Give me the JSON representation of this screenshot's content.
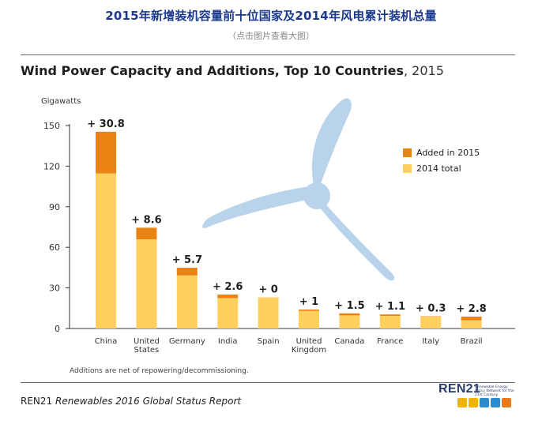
{
  "page": {
    "title": "2015年新增装机容量前十位国家及2014年风电累计装机总量",
    "subtitle": "（点击图片查看大图）"
  },
  "chart_data": {
    "type": "bar",
    "title": "Wind Power Capacity and Additions, Top 10 Countries",
    "title_year": ", 2015",
    "ylabel": "Gigawatts",
    "ylim": [
      0,
      150
    ],
    "yticks": [
      0,
      30,
      60,
      90,
      120,
      150
    ],
    "categories": [
      [
        "China"
      ],
      [
        "United",
        "States"
      ],
      [
        "Germany"
      ],
      [
        "India"
      ],
      [
        "Spain"
      ],
      [
        "United",
        "Kingdom"
      ],
      [
        "Canada"
      ],
      [
        "France"
      ],
      [
        "Italy"
      ],
      [
        "Brazil"
      ]
    ],
    "series": [
      {
        "name": "2014 total",
        "color": "#ffd05e",
        "values": [
          114.6,
          65.9,
          39.2,
          22.5,
          23.0,
          13.0,
          9.7,
          9.3,
          8.7,
          6.0
        ]
      },
      {
        "name": "Added in 2015",
        "color": "#e98414",
        "values": [
          30.8,
          8.6,
          5.7,
          2.6,
          0,
          1,
          1.5,
          1.1,
          0.3,
          2.8
        ]
      }
    ],
    "data_labels": [
      "+ 30.8",
      "+ 8.6",
      "+ 5.7",
      "+ 2.6",
      "+ 0",
      "+ 1",
      "+ 1.5",
      "+ 1.1",
      "+ 0.3",
      "+ 2.8"
    ],
    "legend": [
      "Added in 2015",
      "2014 total"
    ],
    "legend_position": "right",
    "grid": false,
    "note": "Additions are net of repowering/decommissioning."
  },
  "footer": {
    "org": "REN21",
    "report": "Renewables 2016 Global Status Report",
    "logo_text": "REN21",
    "logo_tagline": "Renewable Energy Policy Network for the 21st Century"
  },
  "colors": {
    "title_blue": "#1b3a8c",
    "bar_2014": "#ffd05e",
    "bar_2015": "#e98414",
    "turbine": "#b9d3ea"
  },
  "decoration": {
    "background_icon": "wind-turbine-icon"
  }
}
